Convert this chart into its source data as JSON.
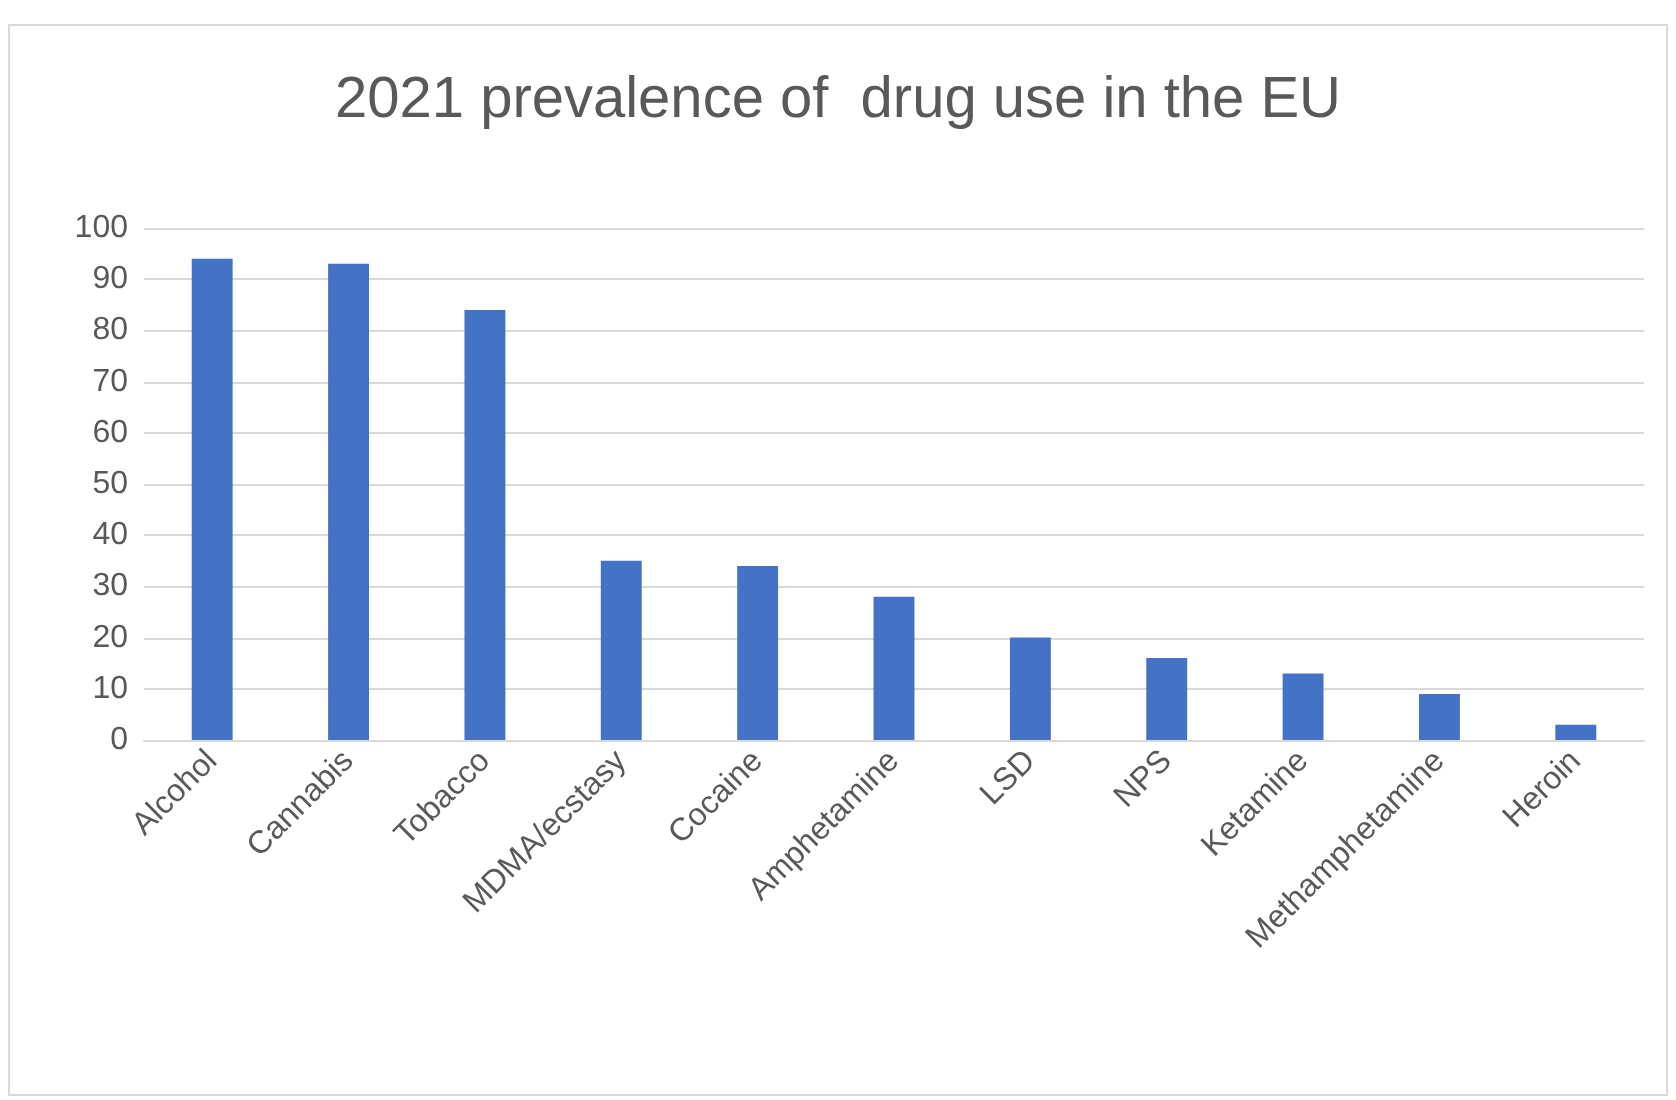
{
  "chart_data": {
    "type": "bar",
    "title": "2021 prevalence of  drug use in the EU",
    "categories": [
      "Alcohol",
      "Cannabis",
      "Tobacco",
      "MDMA/ecstasy",
      "Cocaine",
      "Amphetamine",
      "LSD",
      "NPS",
      "Ketamine",
      "Methamphetamine",
      "Heroin"
    ],
    "values": [
      94,
      93,
      84,
      35,
      34,
      28,
      20,
      16,
      13,
      9,
      3
    ],
    "color": "#4472c4",
    "ylim": [
      0,
      100
    ],
    "yticks": [
      0,
      10,
      20,
      30,
      40,
      50,
      60,
      70,
      80,
      90,
      100
    ],
    "grid": "y"
  }
}
